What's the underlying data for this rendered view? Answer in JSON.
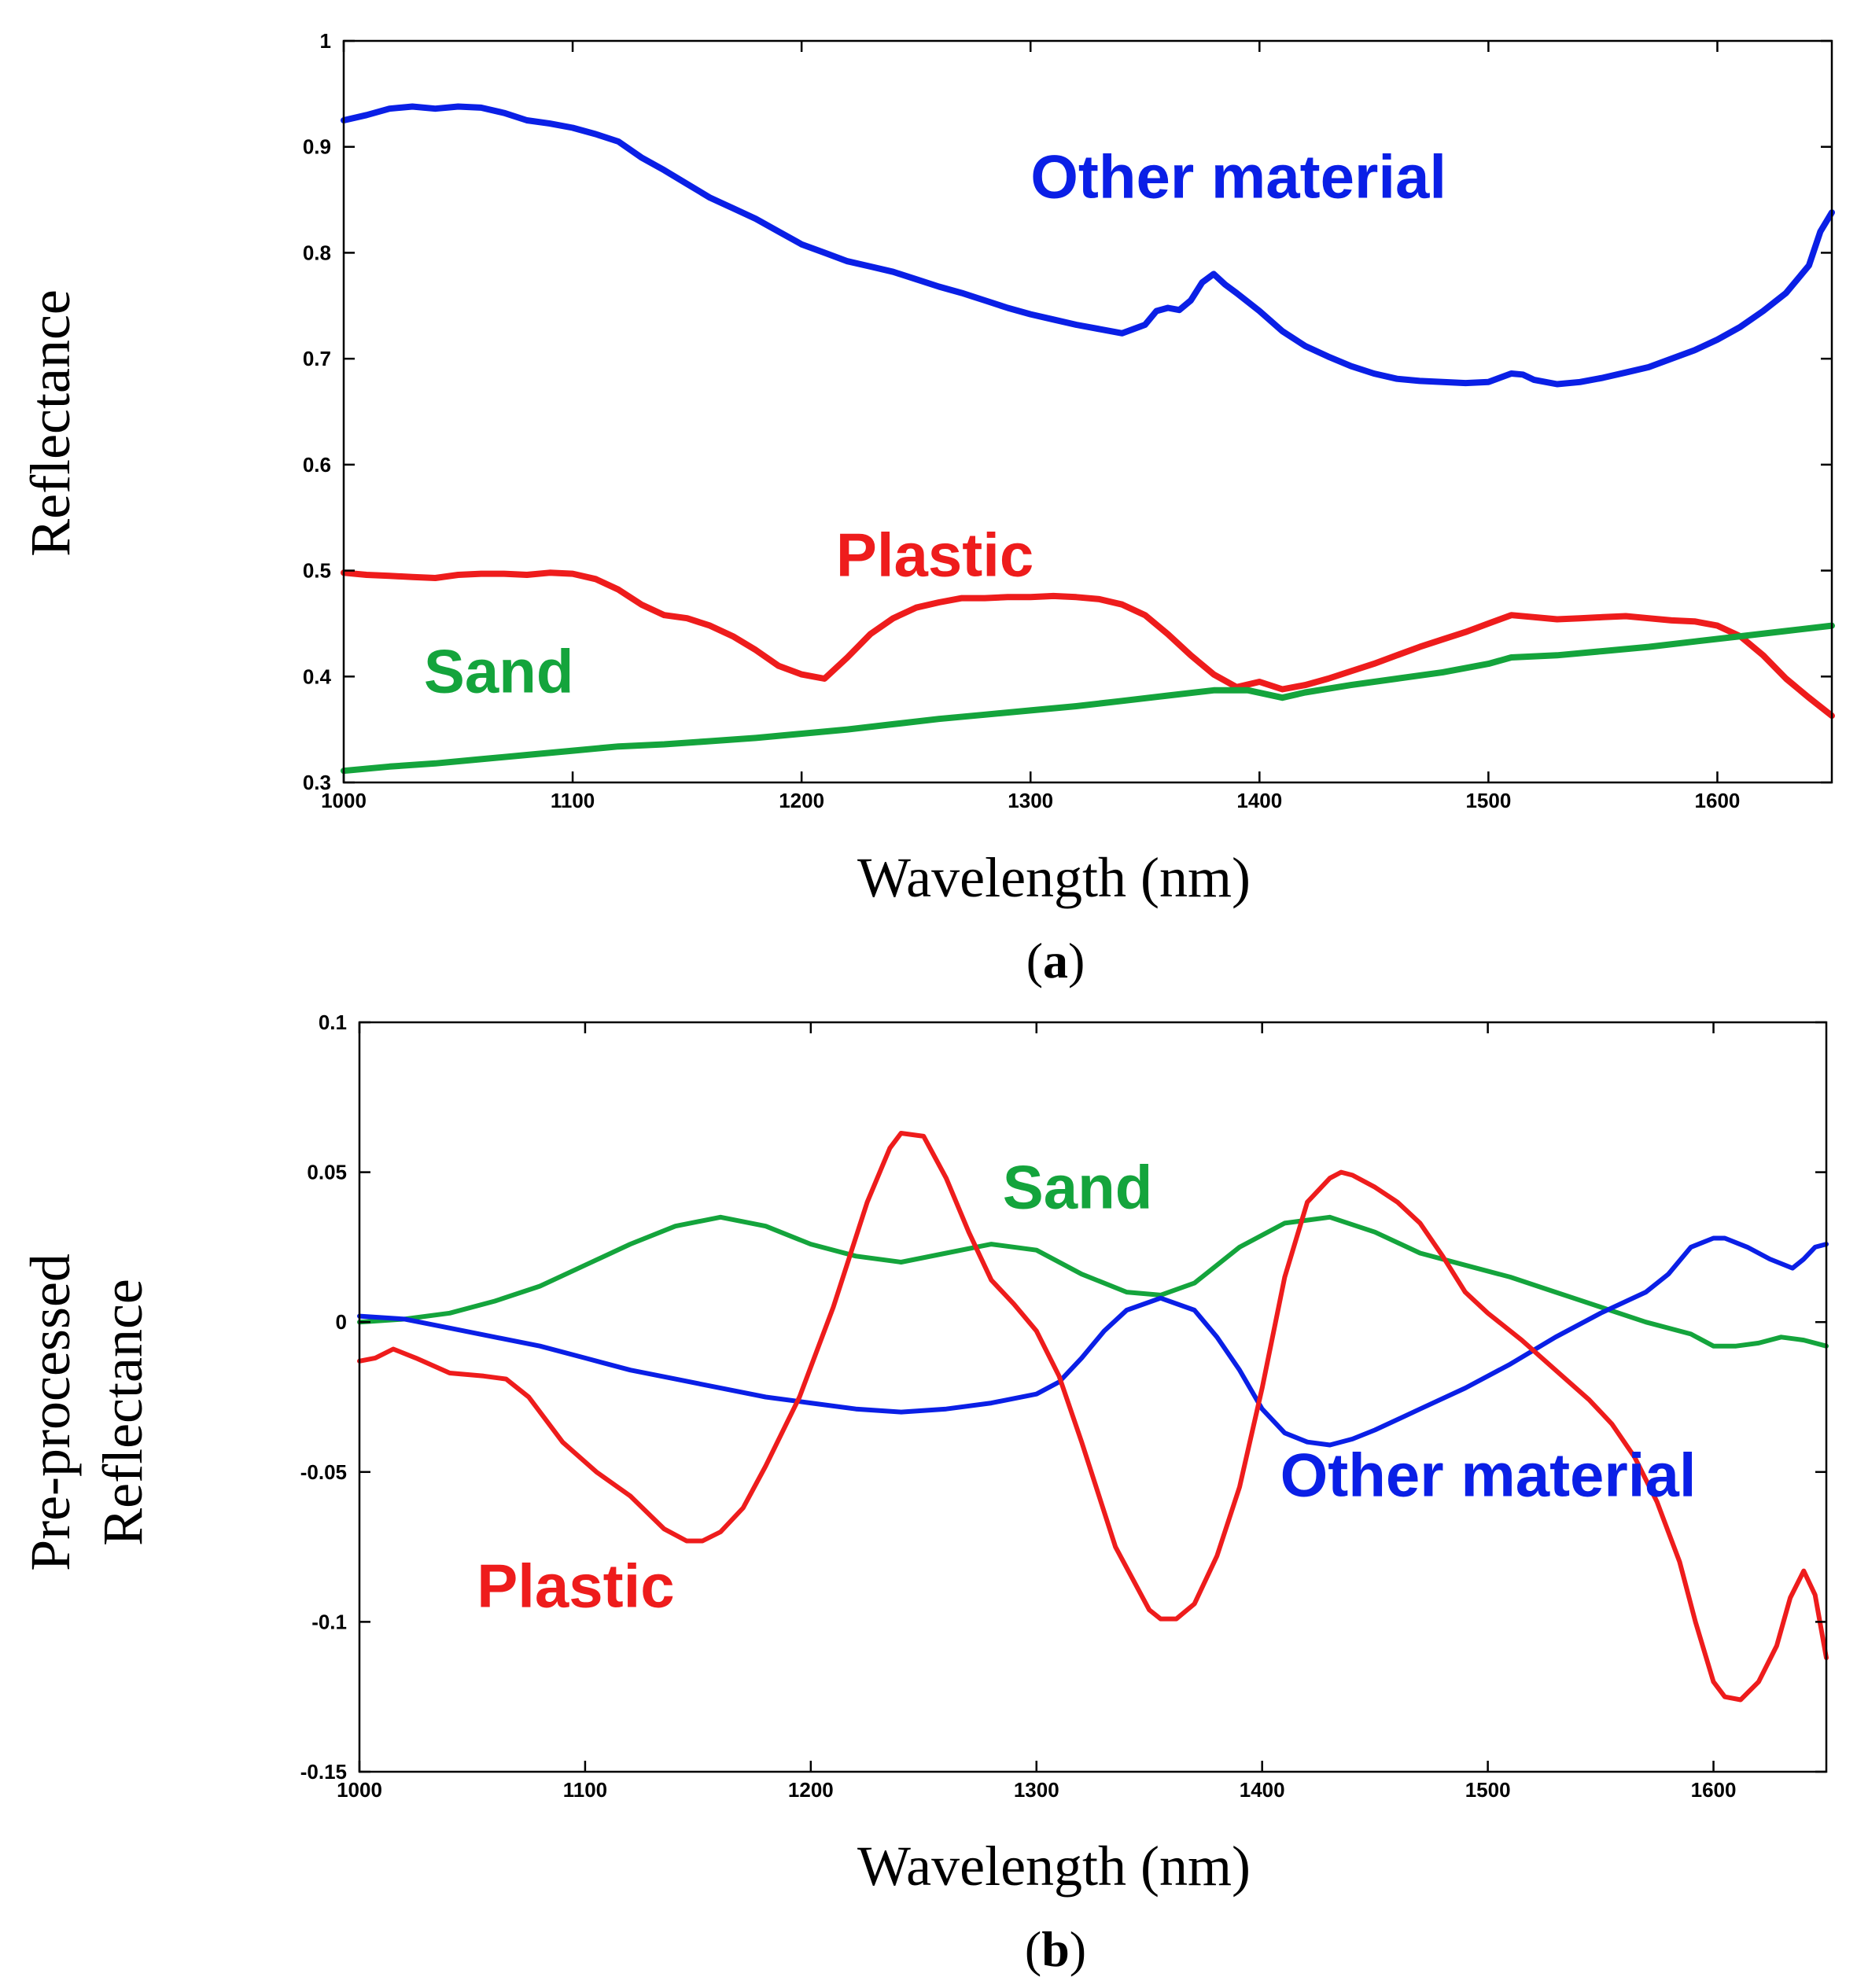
{
  "chart_data": [
    {
      "panel": "a",
      "panel_label": "a",
      "type": "line",
      "xlabel": "Wavelength (nm)",
      "ylabel": "Reflectance",
      "xlim": [
        1000,
        1650
      ],
      "ylim": [
        0.3,
        1.0
      ],
      "xticks": [
        1000,
        1100,
        1200,
        1300,
        1400,
        1500,
        1600
      ],
      "xtick_labels": [
        "1000",
        "1100",
        "1200",
        "1300",
        "1400",
        "1500",
        "1600"
      ],
      "yticks": [
        0.3,
        0.4,
        0.5,
        0.6,
        0.7,
        0.8,
        0.9,
        1.0
      ],
      "ytick_labels": [
        "0.3",
        "0.4",
        "0.5",
        "0.6",
        "0.7",
        "0.8",
        "0.9",
        "1"
      ],
      "series": [
        {
          "name": "Other material",
          "color": "#0a1fe6",
          "label_text": "Other material",
          "label_at": [
            1300,
            0.852
          ],
          "x": [
            1000,
            1010,
            1020,
            1030,
            1040,
            1050,
            1060,
            1070,
            1080,
            1090,
            1100,
            1110,
            1120,
            1130,
            1140,
            1150,
            1160,
            1170,
            1180,
            1190,
            1200,
            1210,
            1220,
            1230,
            1240,
            1250,
            1260,
            1270,
            1280,
            1290,
            1300,
            1310,
            1320,
            1330,
            1340,
            1350,
            1355,
            1360,
            1365,
            1370,
            1375,
            1380,
            1385,
            1390,
            1400,
            1410,
            1420,
            1430,
            1440,
            1450,
            1460,
            1470,
            1480,
            1490,
            1500,
            1505,
            1510,
            1515,
            1520,
            1530,
            1540,
            1550,
            1560,
            1570,
            1580,
            1590,
            1600,
            1610,
            1620,
            1630,
            1640,
            1645,
            1650
          ],
          "y": [
            0.925,
            0.93,
            0.936,
            0.938,
            0.936,
            0.938,
            0.937,
            0.932,
            0.925,
            0.922,
            0.918,
            0.912,
            0.905,
            0.89,
            0.878,
            0.865,
            0.852,
            0.842,
            0.832,
            0.82,
            0.808,
            0.8,
            0.792,
            0.787,
            0.782,
            0.775,
            0.768,
            0.762,
            0.755,
            0.748,
            0.742,
            0.737,
            0.732,
            0.728,
            0.724,
            0.732,
            0.745,
            0.748,
            0.746,
            0.755,
            0.772,
            0.78,
            0.77,
            0.762,
            0.745,
            0.726,
            0.712,
            0.702,
            0.693,
            0.686,
            0.681,
            0.679,
            0.678,
            0.677,
            0.678,
            0.682,
            0.686,
            0.685,
            0.68,
            0.676,
            0.678,
            0.682,
            0.687,
            0.692,
            0.7,
            0.708,
            0.718,
            0.73,
            0.745,
            0.762,
            0.788,
            0.82,
            0.838
          ]
        },
        {
          "name": "Plastic",
          "color": "#ee1c1c",
          "label_text": "Plastic",
          "label_at": [
            1215,
            0.495
          ],
          "x": [
            1000,
            1010,
            1020,
            1030,
            1040,
            1050,
            1060,
            1070,
            1080,
            1090,
            1100,
            1110,
            1120,
            1130,
            1140,
            1150,
            1160,
            1170,
            1180,
            1190,
            1200,
            1210,
            1220,
            1230,
            1240,
            1250,
            1260,
            1270,
            1280,
            1290,
            1300,
            1310,
            1320,
            1330,
            1340,
            1350,
            1360,
            1370,
            1380,
            1390,
            1400,
            1410,
            1420,
            1430,
            1440,
            1450,
            1460,
            1470,
            1480,
            1490,
            1500,
            1510,
            1520,
            1530,
            1540,
            1550,
            1560,
            1570,
            1580,
            1590,
            1600,
            1610,
            1620,
            1630,
            1640,
            1650
          ],
          "y": [
            0.498,
            0.496,
            0.495,
            0.494,
            0.493,
            0.496,
            0.497,
            0.497,
            0.496,
            0.498,
            0.497,
            0.492,
            0.482,
            0.468,
            0.458,
            0.455,
            0.448,
            0.438,
            0.425,
            0.41,
            0.402,
            0.398,
            0.418,
            0.44,
            0.455,
            0.465,
            0.47,
            0.474,
            0.474,
            0.475,
            0.475,
            0.476,
            0.475,
            0.473,
            0.468,
            0.458,
            0.44,
            0.42,
            0.402,
            0.39,
            0.395,
            0.388,
            0.392,
            0.398,
            0.405,
            0.412,
            0.42,
            0.428,
            0.435,
            0.442,
            0.45,
            0.458,
            0.456,
            0.454,
            0.455,
            0.456,
            0.457,
            0.455,
            0.453,
            0.452,
            0.448,
            0.438,
            0.42,
            0.398,
            0.38,
            0.363
          ]
        },
        {
          "name": "Sand",
          "color": "#14a43c",
          "label_text": "Sand",
          "label_at": [
            1035,
            0.385
          ],
          "x": [
            1000,
            1020,
            1040,
            1060,
            1080,
            1100,
            1120,
            1140,
            1160,
            1180,
            1200,
            1220,
            1240,
            1260,
            1280,
            1300,
            1320,
            1340,
            1360,
            1380,
            1395,
            1410,
            1420,
            1440,
            1460,
            1480,
            1500,
            1510,
            1530,
            1550,
            1570,
            1590,
            1610,
            1630,
            1650
          ],
          "y": [
            0.311,
            0.315,
            0.318,
            0.322,
            0.326,
            0.33,
            0.334,
            0.336,
            0.339,
            0.342,
            0.346,
            0.35,
            0.355,
            0.36,
            0.364,
            0.368,
            0.372,
            0.377,
            0.382,
            0.387,
            0.387,
            0.38,
            0.385,
            0.392,
            0.398,
            0.404,
            0.412,
            0.418,
            0.42,
            0.424,
            0.428,
            0.433,
            0.438,
            0.443,
            0.448
          ]
        }
      ]
    },
    {
      "panel": "b",
      "panel_label": "b",
      "type": "line",
      "xlabel": "Wavelength (nm)",
      "ylabel": [
        "Pre-processed",
        "Reflectance"
      ],
      "xlim": [
        1000,
        1650
      ],
      "ylim": [
        -0.15,
        0.1
      ],
      "xticks": [
        1000,
        1100,
        1200,
        1300,
        1400,
        1500,
        1600
      ],
      "xtick_labels": [
        "1000",
        "1100",
        "1200",
        "1300",
        "1400",
        "1500",
        "1600"
      ],
      "yticks": [
        -0.15,
        -0.1,
        -0.05,
        0,
        0.05,
        0.1
      ],
      "ytick_labels": [
        "-0.15",
        "-0.1",
        "-0.05",
        "0",
        "0.05",
        "0.1"
      ],
      "series": [
        {
          "name": "Sand",
          "color": "#14a43c",
          "label_text": "Sand",
          "label_at": [
            1285,
            0.038
          ],
          "x": [
            1000,
            1020,
            1040,
            1060,
            1080,
            1100,
            1120,
            1140,
            1160,
            1180,
            1200,
            1220,
            1240,
            1260,
            1280,
            1300,
            1320,
            1340,
            1355,
            1370,
            1390,
            1410,
            1430,
            1450,
            1470,
            1490,
            1510,
            1530,
            1550,
            1570,
            1590,
            1600,
            1610,
            1620,
            1630,
            1640,
            1650
          ],
          "y": [
            0.0,
            0.001,
            0.003,
            0.007,
            0.012,
            0.019,
            0.026,
            0.032,
            0.035,
            0.032,
            0.026,
            0.022,
            0.02,
            0.023,
            0.026,
            0.024,
            0.016,
            0.01,
            0.009,
            0.013,
            0.025,
            0.033,
            0.035,
            0.03,
            0.023,
            0.019,
            0.015,
            0.01,
            0.005,
            0.0,
            -0.004,
            -0.008,
            -0.008,
            -0.007,
            -0.005,
            -0.006,
            -0.008
          ]
        },
        {
          "name": "Other material",
          "color": "#0a1fe6",
          "label_text": "Other material",
          "label_at": [
            1408,
            -0.058
          ],
          "x": [
            1000,
            1020,
            1040,
            1060,
            1080,
            1100,
            1120,
            1140,
            1160,
            1180,
            1200,
            1220,
            1240,
            1260,
            1280,
            1300,
            1310,
            1320,
            1330,
            1340,
            1355,
            1370,
            1380,
            1390,
            1400,
            1410,
            1420,
            1430,
            1440,
            1450,
            1470,
            1490,
            1510,
            1530,
            1550,
            1570,
            1580,
            1590,
            1600,
            1605,
            1615,
            1625,
            1635,
            1640,
            1645,
            1650
          ],
          "y": [
            0.002,
            0.001,
            -0.002,
            -0.005,
            -0.008,
            -0.012,
            -0.016,
            -0.019,
            -0.022,
            -0.025,
            -0.027,
            -0.029,
            -0.03,
            -0.029,
            -0.027,
            -0.024,
            -0.02,
            -0.012,
            -0.003,
            0.004,
            0.008,
            0.004,
            -0.005,
            -0.016,
            -0.029,
            -0.037,
            -0.04,
            -0.041,
            -0.039,
            -0.036,
            -0.029,
            -0.022,
            -0.014,
            -0.005,
            0.003,
            0.01,
            0.016,
            0.025,
            0.028,
            0.028,
            0.025,
            0.021,
            0.018,
            0.021,
            0.025,
            0.026
          ]
        },
        {
          "name": "Plastic",
          "color": "#ee1c1c",
          "label_text": "Plastic",
          "label_at": [
            1052,
            -0.095
          ],
          "x": [
            1000,
            1007,
            1015,
            1025,
            1040,
            1055,
            1065,
            1075,
            1090,
            1105,
            1120,
            1135,
            1145,
            1152,
            1160,
            1170,
            1180,
            1195,
            1210,
            1225,
            1235,
            1240,
            1250,
            1260,
            1270,
            1280,
            1290,
            1300,
            1310,
            1320,
            1335,
            1350,
            1355,
            1362,
            1370,
            1380,
            1390,
            1400,
            1410,
            1420,
            1430,
            1435,
            1440,
            1450,
            1460,
            1470,
            1480,
            1490,
            1500,
            1515,
            1530,
            1545,
            1555,
            1565,
            1575,
            1585,
            1592,
            1600,
            1605,
            1612,
            1620,
            1628,
            1634,
            1640,
            1645,
            1650
          ],
          "y": [
            -0.013,
            -0.012,
            -0.009,
            -0.012,
            -0.017,
            -0.018,
            -0.019,
            -0.025,
            -0.04,
            -0.05,
            -0.058,
            -0.069,
            -0.073,
            -0.073,
            -0.07,
            -0.062,
            -0.048,
            -0.025,
            0.005,
            0.04,
            0.058,
            0.063,
            0.062,
            0.048,
            0.03,
            0.014,
            0.006,
            -0.003,
            -0.018,
            -0.04,
            -0.075,
            -0.096,
            -0.099,
            -0.099,
            -0.094,
            -0.078,
            -0.055,
            -0.022,
            0.015,
            0.04,
            0.048,
            0.05,
            0.049,
            0.045,
            0.04,
            0.033,
            0.022,
            0.01,
            0.003,
            -0.006,
            -0.016,
            -0.026,
            -0.034,
            -0.045,
            -0.06,
            -0.08,
            -0.1,
            -0.12,
            -0.125,
            -0.126,
            -0.12,
            -0.108,
            -0.092,
            -0.083,
            -0.091,
            -0.112
          ]
        }
      ]
    }
  ]
}
